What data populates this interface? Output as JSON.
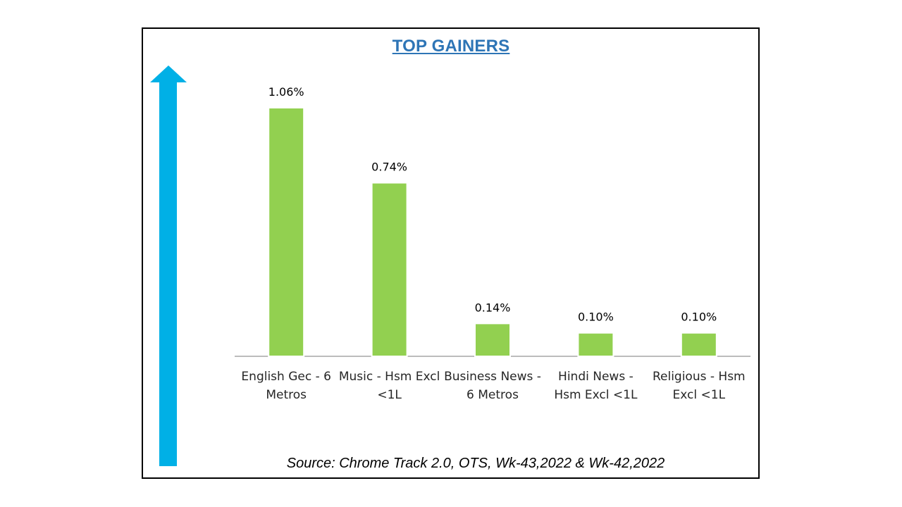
{
  "colors": {
    "title": "#2E75B6",
    "bar": "#92D050",
    "bar_outline": "#ffffff",
    "arrow": "#00B0E6",
    "axis": "#A6A6A6",
    "text": "#000000"
  },
  "chart_data": {
    "type": "bar",
    "title": "TOP GAINERS",
    "categories": [
      [
        "English Gec - 6",
        "Metros"
      ],
      [
        "Music - Hsm Excl",
        "<1L"
      ],
      [
        "Business News -",
        "6 Metros"
      ],
      [
        "Hindi News -",
        "Hsm Excl <1L"
      ],
      [
        "Religious - Hsm",
        "Excl <1L"
      ]
    ],
    "values": [
      1.06,
      0.74,
      0.14,
      0.1,
      0.1
    ],
    "data_labels": [
      "1.06%",
      "0.74%",
      "0.14%",
      "0.10%",
      "0.10%"
    ],
    "unit": "%",
    "ylim": [
      0,
      1.06
    ],
    "grid": false,
    "legend": "none"
  },
  "footer": {
    "source": "Source: Chrome Track 2.0, OTS, Wk-43,2022 & Wk-42,2022"
  },
  "decoration": {
    "arrow_icon": "up-arrow-icon"
  }
}
